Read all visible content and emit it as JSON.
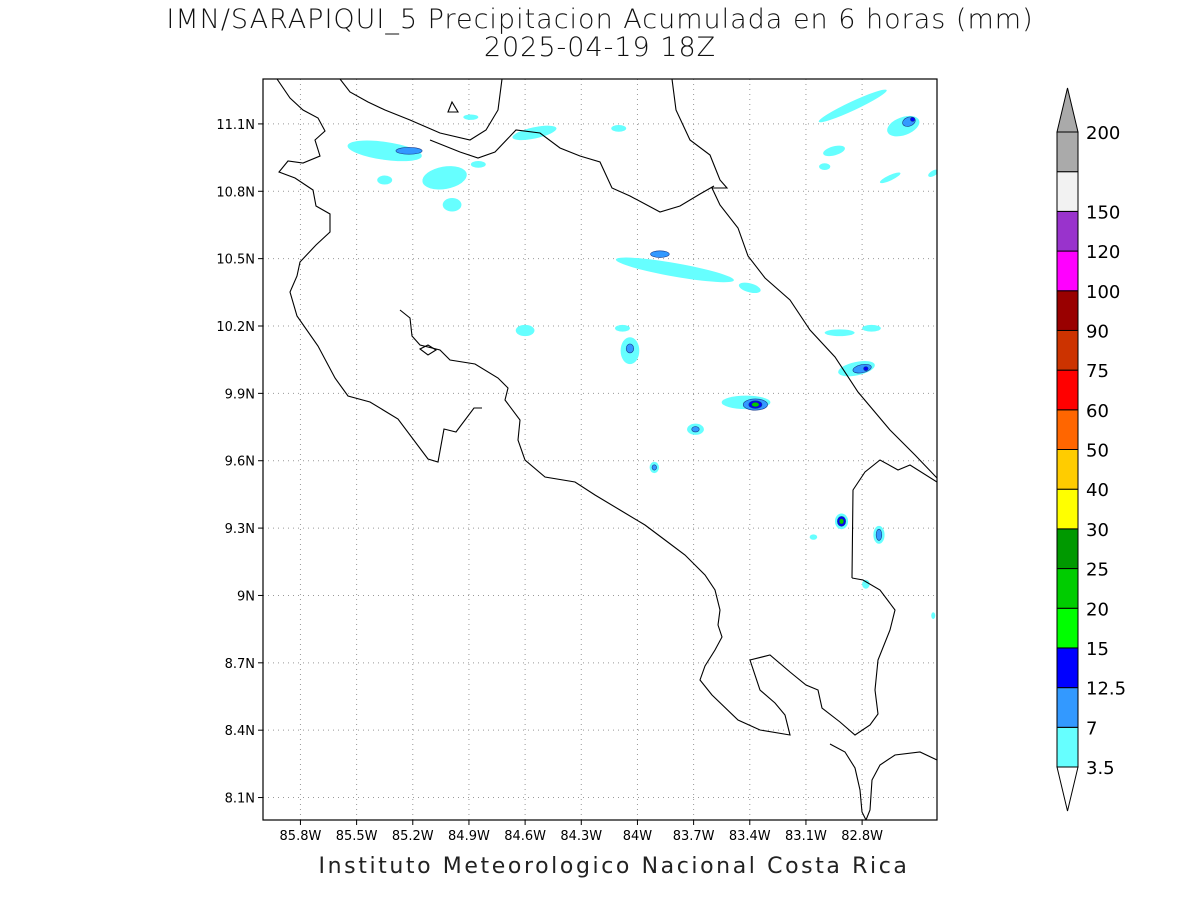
{
  "title": {
    "line1": "IMN/SARAPIQUI_5 Precipitacion Acumulada en 6 horas (mm)",
    "line2": "2025-04-19 18Z"
  },
  "footer": "Instituto Meteorologico Nacional Costa Rica",
  "map": {
    "lon_range": [
      -86.0,
      -82.4
    ],
    "lat_range": [
      8.0,
      11.3
    ],
    "lon_ticks": [
      {
        "value": -85.8,
        "label": "85.8W"
      },
      {
        "value": -85.5,
        "label": "85.5W"
      },
      {
        "value": -85.2,
        "label": "85.2W"
      },
      {
        "value": -84.9,
        "label": "84.9W"
      },
      {
        "value": -84.6,
        "label": "84.6W"
      },
      {
        "value": -84.3,
        "label": "84.3W"
      },
      {
        "value": -84.0,
        "label": "84W"
      },
      {
        "value": -83.7,
        "label": "83.7W"
      },
      {
        "value": -83.4,
        "label": "83.4W"
      },
      {
        "value": -83.1,
        "label": "83.1W"
      },
      {
        "value": -82.8,
        "label": "82.8W"
      }
    ],
    "lat_ticks": [
      {
        "value": 11.1,
        "label": "11.1N"
      },
      {
        "value": 10.8,
        "label": "10.8N"
      },
      {
        "value": 10.5,
        "label": "10.5N"
      },
      {
        "value": 10.2,
        "label": "10.2N"
      },
      {
        "value": 9.9,
        "label": "9.9N"
      },
      {
        "value": 9.6,
        "label": "9.6N"
      },
      {
        "value": 9.3,
        "label": "9.3N"
      },
      {
        "value": 9.0,
        "label": "9N"
      },
      {
        "value": 8.7,
        "label": "8.7N"
      },
      {
        "value": 8.4,
        "label": "8.4N"
      },
      {
        "value": 8.1,
        "label": "8.1N"
      }
    ],
    "grid": "dotted",
    "precip_cells": [
      {
        "lon": -85.35,
        "lat": 10.98,
        "rx": 0.2,
        "ry": 0.04,
        "rot": 8,
        "level": 1
      },
      {
        "lon": -85.22,
        "lat": 10.98,
        "rx": 0.07,
        "ry": 0.015,
        "rot": 0,
        "level": 2
      },
      {
        "lon": -85.03,
        "lat": 10.86,
        "rx": 0.12,
        "ry": 0.05,
        "rot": -10,
        "level": 1
      },
      {
        "lon": -84.99,
        "lat": 10.74,
        "rx": 0.05,
        "ry": 0.03,
        "rot": 0,
        "level": 1
      },
      {
        "lon": -85.35,
        "lat": 10.85,
        "rx": 0.04,
        "ry": 0.02,
        "rot": 0,
        "level": 1
      },
      {
        "lon": -84.85,
        "lat": 10.92,
        "rx": 0.04,
        "ry": 0.015,
        "rot": 0,
        "level": 1
      },
      {
        "lon": -84.55,
        "lat": 11.06,
        "rx": 0.12,
        "ry": 0.025,
        "rot": -12,
        "level": 1
      },
      {
        "lon": -84.1,
        "lat": 11.08,
        "rx": 0.04,
        "ry": 0.015,
        "rot": 0,
        "level": 1
      },
      {
        "lon": -84.89,
        "lat": 11.13,
        "rx": 0.04,
        "ry": 0.012,
        "rot": 0,
        "level": 1
      },
      {
        "lon": -83.8,
        "lat": 10.45,
        "rx": 0.32,
        "ry": 0.03,
        "rot": 10,
        "level": 1
      },
      {
        "lon": -83.88,
        "lat": 10.52,
        "rx": 0.05,
        "ry": 0.015,
        "rot": 0,
        "level": 2
      },
      {
        "lon": -83.4,
        "lat": 10.37,
        "rx": 0.06,
        "ry": 0.02,
        "rot": 15,
        "level": 1
      },
      {
        "lon": -82.85,
        "lat": 11.18,
        "rx": 0.2,
        "ry": 0.02,
        "rot": -25,
        "level": 1
      },
      {
        "lon": -82.58,
        "lat": 11.09,
        "rx": 0.09,
        "ry": 0.04,
        "rot": -20,
        "level": 1
      },
      {
        "lon": -82.55,
        "lat": 11.11,
        "rx": 0.035,
        "ry": 0.02,
        "rot": -20,
        "level": 2
      },
      {
        "lon": -82.53,
        "lat": 11.12,
        "rx": 0.012,
        "ry": 0.008,
        "rot": 0,
        "level": 3
      },
      {
        "lon": -82.95,
        "lat": 10.98,
        "rx": 0.06,
        "ry": 0.02,
        "rot": -15,
        "level": 1
      },
      {
        "lon": -83.0,
        "lat": 10.91,
        "rx": 0.03,
        "ry": 0.015,
        "rot": 0,
        "level": 1
      },
      {
        "lon": -82.65,
        "lat": 10.86,
        "rx": 0.06,
        "ry": 0.012,
        "rot": -25,
        "level": 1
      },
      {
        "lon": -82.92,
        "lat": 10.17,
        "rx": 0.08,
        "ry": 0.015,
        "rot": 0,
        "level": 1
      },
      {
        "lon": -82.75,
        "lat": 10.19,
        "rx": 0.05,
        "ry": 0.015,
        "rot": 0,
        "level": 1
      },
      {
        "lon": -82.83,
        "lat": 10.01,
        "rx": 0.1,
        "ry": 0.03,
        "rot": -12,
        "level": 1
      },
      {
        "lon": -82.8,
        "lat": 10.01,
        "rx": 0.05,
        "ry": 0.018,
        "rot": -12,
        "level": 2
      },
      {
        "lon": -82.78,
        "lat": 10.01,
        "rx": 0.012,
        "ry": 0.008,
        "rot": 0,
        "level": 3
      },
      {
        "lon": -84.6,
        "lat": 10.18,
        "rx": 0.05,
        "ry": 0.025,
        "rot": 0,
        "level": 1
      },
      {
        "lon": -84.04,
        "lat": 10.09,
        "rx": 0.05,
        "ry": 0.06,
        "rot": 0,
        "level": 1
      },
      {
        "lon": -84.04,
        "lat": 10.1,
        "rx": 0.02,
        "ry": 0.02,
        "rot": 0,
        "level": 2
      },
      {
        "lon": -84.08,
        "lat": 10.19,
        "rx": 0.04,
        "ry": 0.015,
        "rot": 0,
        "level": 1
      },
      {
        "lon": -83.42,
        "lat": 9.86,
        "rx": 0.13,
        "ry": 0.03,
        "rot": 0,
        "level": 1
      },
      {
        "lon": -83.37,
        "lat": 9.85,
        "rx": 0.065,
        "ry": 0.025,
        "rot": 0,
        "level": 2
      },
      {
        "lon": -83.37,
        "lat": 9.85,
        "rx": 0.035,
        "ry": 0.017,
        "rot": 0,
        "level": 3
      },
      {
        "lon": -83.37,
        "lat": 9.85,
        "rx": 0.02,
        "ry": 0.01,
        "rot": 0,
        "level": 5
      },
      {
        "lon": -83.69,
        "lat": 9.74,
        "rx": 0.045,
        "ry": 0.025,
        "rot": 0,
        "level": 1
      },
      {
        "lon": -83.69,
        "lat": 9.74,
        "rx": 0.02,
        "ry": 0.012,
        "rot": 0,
        "level": 2
      },
      {
        "lon": -83.91,
        "lat": 9.57,
        "rx": 0.025,
        "ry": 0.025,
        "rot": 0,
        "level": 1
      },
      {
        "lon": -83.91,
        "lat": 9.57,
        "rx": 0.012,
        "ry": 0.012,
        "rot": 0,
        "level": 2
      },
      {
        "lon": -82.91,
        "lat": 9.33,
        "rx": 0.035,
        "ry": 0.035,
        "rot": 0,
        "level": 1
      },
      {
        "lon": -82.91,
        "lat": 9.33,
        "rx": 0.022,
        "ry": 0.022,
        "rot": 0,
        "level": 3
      },
      {
        "lon": -82.91,
        "lat": 9.33,
        "rx": 0.012,
        "ry": 0.012,
        "rot": 0,
        "level": 5
      },
      {
        "lon": -82.71,
        "lat": 9.27,
        "rx": 0.03,
        "ry": 0.04,
        "rot": 0,
        "level": 1
      },
      {
        "lon": -82.71,
        "lat": 9.27,
        "rx": 0.015,
        "ry": 0.025,
        "rot": 0,
        "level": 2
      },
      {
        "lon": -83.06,
        "lat": 9.26,
        "rx": 0.02,
        "ry": 0.012,
        "rot": 0,
        "level": 1
      },
      {
        "lon": -82.78,
        "lat": 9.05,
        "rx": 0.02,
        "ry": 0.02,
        "rot": 0,
        "level": 1
      },
      {
        "lon": -82.42,
        "lat": 10.88,
        "rx": 0.03,
        "ry": 0.012,
        "rot": -30,
        "level": 1
      },
      {
        "lon": -82.42,
        "lat": 8.91,
        "rx": 0.01,
        "ry": 0.015,
        "rot": 0,
        "level": 1
      }
    ]
  },
  "legend": {
    "levels": [
      {
        "color": "#66ffff",
        "label": "3.5"
      },
      {
        "color": "#3399ff",
        "label": "7"
      },
      {
        "color": "#0000ff",
        "label": "12.5"
      },
      {
        "color": "#00ff00",
        "label": "15"
      },
      {
        "color": "#00cc00",
        "label": "20"
      },
      {
        "color": "#009900",
        "label": "25"
      },
      {
        "color": "#ffff00",
        "label": "30"
      },
      {
        "color": "#ffcc00",
        "label": "40"
      },
      {
        "color": "#ff6600",
        "label": "50"
      },
      {
        "color": "#ff0000",
        "label": "60"
      },
      {
        "color": "#cc3300",
        "label": "75"
      },
      {
        "color": "#990000",
        "label": "90"
      },
      {
        "color": "#ff00ff",
        "label": "100"
      },
      {
        "color": "#9933cc",
        "label": "120"
      },
      {
        "color": "#f2f2f2",
        "label": "150"
      },
      {
        "color": "#aaaaaa",
        "label": "200"
      }
    ]
  }
}
